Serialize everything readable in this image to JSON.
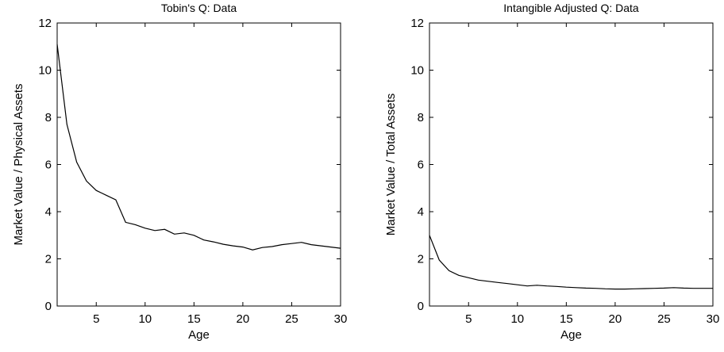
{
  "chart_data": [
    {
      "type": "line",
      "title": "Tobin's Q: Data",
      "xlabel": "Age",
      "ylabel": "Market Value / Physical Assets",
      "xlim": [
        1,
        30
      ],
      "ylim": [
        0,
        12
      ],
      "xticks": [
        5,
        10,
        15,
        20,
        25,
        30
      ],
      "yticks": [
        0,
        2,
        4,
        6,
        8,
        10,
        12
      ],
      "grid": false,
      "x": [
        1,
        2,
        3,
        4,
        5,
        6,
        7,
        8,
        9,
        10,
        11,
        12,
        13,
        14,
        15,
        16,
        17,
        18,
        19,
        20,
        21,
        22,
        23,
        24,
        25,
        26,
        27,
        28,
        29,
        30
      ],
      "series": [
        {
          "values": [
            11.1,
            7.7,
            6.1,
            5.3,
            4.9,
            4.7,
            4.5,
            3.55,
            3.45,
            3.3,
            3.2,
            3.25,
            3.05,
            3.1,
            3.0,
            2.8,
            2.72,
            2.62,
            2.55,
            2.5,
            2.38,
            2.48,
            2.52,
            2.6,
            2.65,
            2.7,
            2.6,
            2.55,
            2.5,
            2.45
          ]
        }
      ]
    },
    {
      "type": "line",
      "title": "Intangible Adjusted Q: Data",
      "xlabel": "Age",
      "ylabel": "Market Value / Total Assets",
      "xlim": [
        1,
        30
      ],
      "ylim": [
        0,
        12
      ],
      "xticks": [
        5,
        10,
        15,
        20,
        25,
        30
      ],
      "yticks": [
        0,
        2,
        4,
        6,
        8,
        10,
        12
      ],
      "grid": false,
      "x": [
        1,
        2,
        3,
        4,
        5,
        6,
        7,
        8,
        9,
        10,
        11,
        12,
        13,
        14,
        15,
        16,
        17,
        18,
        19,
        20,
        21,
        22,
        23,
        24,
        25,
        26,
        27,
        28,
        29,
        30
      ],
      "series": [
        {
          "values": [
            3.0,
            1.95,
            1.5,
            1.3,
            1.2,
            1.1,
            1.05,
            1.0,
            0.95,
            0.9,
            0.85,
            0.88,
            0.85,
            0.83,
            0.8,
            0.78,
            0.76,
            0.75,
            0.73,
            0.72,
            0.72,
            0.73,
            0.74,
            0.75,
            0.76,
            0.78,
            0.76,
            0.75,
            0.75,
            0.75
          ]
        }
      ]
    }
  ]
}
